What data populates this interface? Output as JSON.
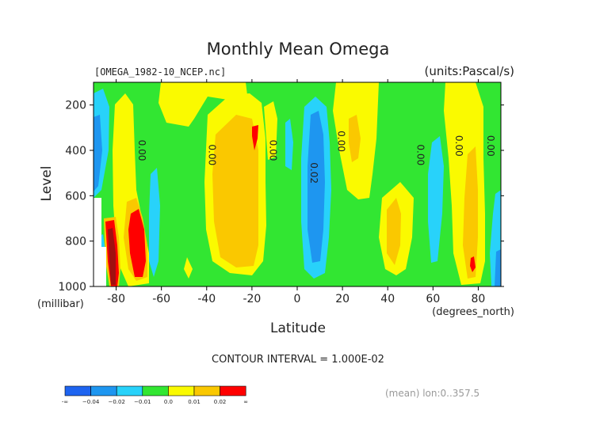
{
  "chart_data": {
    "type": "heatmap",
    "title": "Monthly Mean Omega",
    "file_label": "[OMEGA_1982-10_NCEP.nc]",
    "units_label": "(units:Pascal/s)",
    "xlabel": "Latitude",
    "x_unit_label": "(degrees_north)",
    "ylabel": "Level",
    "y_unit_label": "(millibar)",
    "xlim": [
      -90,
      90
    ],
    "ylim": [
      1000,
      100
    ],
    "x_ticks": [
      -80,
      -60,
      -40,
      -20,
      0,
      20,
      40,
      60,
      80
    ],
    "y_ticks": [
      200,
      400,
      600,
      800,
      1000
    ],
    "contour_interval_text": "CONTOUR INTERVAL = 1.000E-02",
    "mean_text": "(mean) lon:0..357.5",
    "contour_labels": [
      {
        "lat": -70,
        "level": 400,
        "text": "0.00"
      },
      {
        "lat": -39,
        "level": 420,
        "text": "0.00"
      },
      {
        "lat": -12,
        "level": 400,
        "text": "0.00"
      },
      {
        "lat": 6,
        "level": 500,
        "text": "0.02"
      },
      {
        "lat": 18,
        "level": 360,
        "text": "0.00"
      },
      {
        "lat": 53,
        "level": 420,
        "text": "0.00"
      },
      {
        "lat": 70,
        "level": 380,
        "text": "0.00"
      },
      {
        "lat": 84,
        "level": 380,
        "text": "0.00"
      }
    ],
    "colorbar": {
      "colors": [
        "#1e64f0",
        "#1e96f0",
        "#28d2fa",
        "#32e632",
        "#fafa00",
        "#fac800",
        "#ff0000"
      ],
      "labels": [
        "-∞",
        "−0.04",
        "−0.02",
        "−0.01",
        "0.0",
        "0.01",
        "0.02",
        "∞"
      ]
    }
  }
}
